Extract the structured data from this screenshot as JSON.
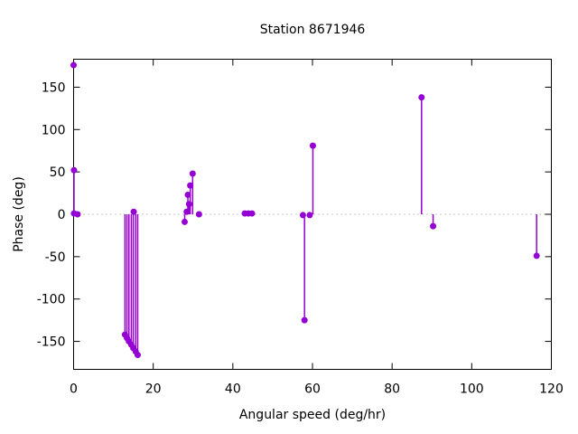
{
  "colors": {
    "background": "#ffffff",
    "text": "#000000",
    "axis": "#000000",
    "zero_line": "#8f8f8f",
    "series": "#9400D3"
  },
  "chart_data": {
    "type": "scatter",
    "style": "impulses-with-points",
    "title": "Station 8671946",
    "xlabel": "Angular speed (deg/hr)",
    "ylabel": "Phase (deg)",
    "xlim": [
      0,
      120
    ],
    "ylim": [
      -183,
      183
    ],
    "xticks": [
      0,
      20,
      40,
      60,
      80,
      100,
      120
    ],
    "yticks": [
      -150,
      -100,
      -50,
      0,
      50,
      100,
      150
    ],
    "grid": false,
    "zero_axis": "dotted",
    "legend": null,
    "points": [
      {
        "x": 0.0,
        "y": 176,
        "stem": false
      },
      {
        "x": 0.1,
        "y": 52
      },
      {
        "x": 0.1,
        "y": 1
      },
      {
        "x": 1.0,
        "y": 0
      },
      {
        "x": 12.9,
        "y": -142
      },
      {
        "x": 13.4,
        "y": -146
      },
      {
        "x": 13.9,
        "y": -150
      },
      {
        "x": 14.5,
        "y": -154
      },
      {
        "x": 15.0,
        "y": -158
      },
      {
        "x": 15.1,
        "y": 3
      },
      {
        "x": 15.6,
        "y": -162
      },
      {
        "x": 16.1,
        "y": -166
      },
      {
        "x": 27.9,
        "y": -9
      },
      {
        "x": 28.4,
        "y": 3
      },
      {
        "x": 28.7,
        "y": 23
      },
      {
        "x": 29.0,
        "y": 12
      },
      {
        "x": 29.3,
        "y": 34
      },
      {
        "x": 29.9,
        "y": 48
      },
      {
        "x": 31.5,
        "y": 0
      },
      {
        "x": 43.0,
        "y": 1
      },
      {
        "x": 43.9,
        "y": 1
      },
      {
        "x": 44.8,
        "y": 1
      },
      {
        "x": 57.6,
        "y": -1
      },
      {
        "x": 58.0,
        "y": -125
      },
      {
        "x": 59.3,
        "y": -1
      },
      {
        "x": 60.1,
        "y": 81
      },
      {
        "x": 87.4,
        "y": 138
      },
      {
        "x": 90.3,
        "y": -14
      },
      {
        "x": 116.3,
        "y": -49
      }
    ]
  }
}
